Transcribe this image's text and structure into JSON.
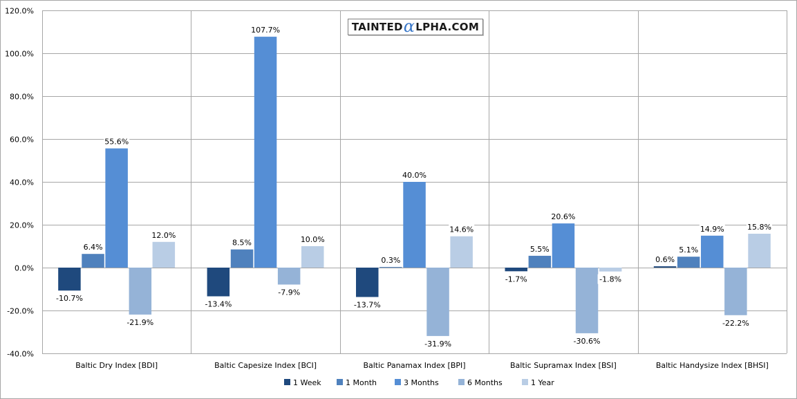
{
  "logo": {
    "prefix": "TAINTED",
    "alpha": "α",
    "suffix": "LPHA.COM"
  },
  "chart_data": {
    "type": "bar",
    "categories": [
      "Baltic Dry Index [BDI]",
      "Baltic Capesize Index [BCI]",
      "Baltic Panamax Index [BPI]",
      "Baltic Supramax Index [BSI]",
      "Baltic Handysize Index [BHSI]"
    ],
    "series": [
      {
        "name": "1 Week",
        "color": "#1f497d",
        "values": [
          -10.7,
          -13.4,
          -13.7,
          -1.7,
          0.6
        ]
      },
      {
        "name": "1 Month",
        "color": "#4f81bd",
        "values": [
          6.4,
          8.5,
          0.3,
          5.5,
          5.1
        ]
      },
      {
        "name": "3 Months",
        "color": "#558ed5",
        "values": [
          55.6,
          107.7,
          40.0,
          20.6,
          14.9
        ]
      },
      {
        "name": "6 Months",
        "color": "#95b3d7",
        "values": [
          -21.9,
          -7.9,
          -31.9,
          -30.6,
          -22.2
        ]
      },
      {
        "name": "1 Year",
        "color": "#b9cde5",
        "values": [
          12.0,
          10.0,
          14.6,
          -1.8,
          15.8
        ]
      }
    ],
    "ylim": [
      -40,
      120
    ],
    "yticks": [
      -40,
      -20,
      0,
      20,
      40,
      60,
      80,
      100,
      120
    ],
    "ytick_labels": [
      "-40.0%",
      "-20.0%",
      "0.0%",
      "20.0%",
      "40.0%",
      "60.0%",
      "80.0%",
      "100.0%",
      "120.0%"
    ],
    "value_suffix": "%",
    "grid": true,
    "legend_position": "bottom",
    "title": "",
    "xlabel": "",
    "ylabel": ""
  }
}
